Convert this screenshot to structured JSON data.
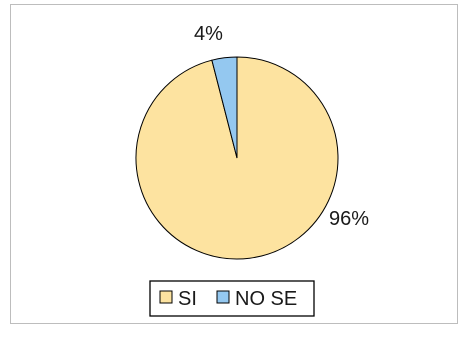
{
  "chart_data": {
    "type": "pie",
    "slices": [
      {
        "label": "SI",
        "value": 96,
        "color": "#fde3a0",
        "data_label": "96%"
      },
      {
        "label": "NO SE",
        "value": 4,
        "color": "#94c8f0",
        "data_label": "4%"
      }
    ],
    "legend": {
      "position": "bottom",
      "entries": [
        "SI",
        "NO SE"
      ]
    },
    "title": "",
    "border_color": "#000000"
  }
}
